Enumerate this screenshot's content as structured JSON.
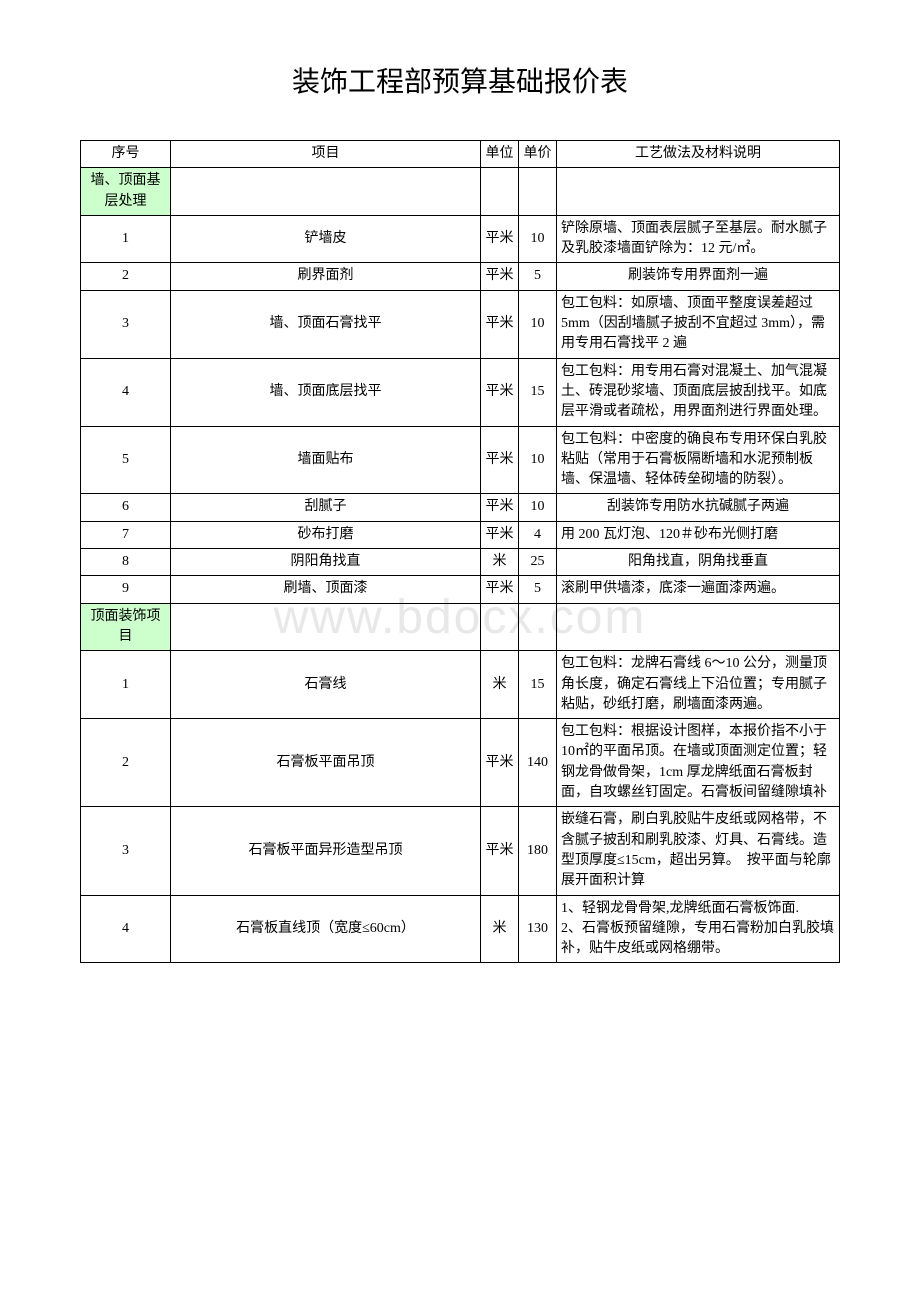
{
  "title": "装饰工程部预算基础报价表",
  "watermark": "www.bdocx.com",
  "headers": {
    "seq": "序号",
    "item": "项目",
    "unit": "单位",
    "price": "单价",
    "desc": "工艺做法及材料说明"
  },
  "section1": "墙、顶面基层处理",
  "section2": "顶面装饰项目",
  "s1": [
    {
      "n": "1",
      "item": "铲墙皮",
      "unit": "平米",
      "price": "10",
      "desc": "铲除原墙、顶面表层腻子至基层。耐水腻子及乳胶漆墙面铲除为：12 元/㎡。",
      "align": "left"
    },
    {
      "n": "2",
      "item": "刷界面剂",
      "unit": "平米",
      "price": "5",
      "desc": "刷装饰专用界面剂一遍",
      "align": "center"
    },
    {
      "n": "3",
      "item": "墙、顶面石膏找平",
      "unit": "平米",
      "price": "10",
      "desc": "包工包料：如原墙、顶面平整度误差超过 5mm（因刮墙腻子披刮不宜超过 3mm），需用专用石膏找平 2 遍",
      "align": "left"
    },
    {
      "n": "4",
      "item": "墙、顶面底层找平",
      "unit": "平米",
      "price": "15",
      "desc": "包工包料：用专用石膏对混凝土、加气混凝土、砖混砂浆墙、顶面底层披刮找平。如底层平滑或者疏松，用界面剂进行界面处理。",
      "align": "left"
    },
    {
      "n": "5",
      "item": "墙面贴布",
      "unit": "平米",
      "price": "10",
      "desc": "包工包料：中密度的确良布专用环保白乳胶粘贴（常用于石膏板隔断墙和水泥预制板墙、保温墙、轻体砖垒砌墙的防裂）。",
      "align": "left"
    },
    {
      "n": "6",
      "item": "刮腻子",
      "unit": "平米",
      "price": "10",
      "desc": "刮装饰专用防水抗碱腻子两遍",
      "align": "center"
    },
    {
      "n": "7",
      "item": "砂布打磨",
      "unit": "平米",
      "price": "4",
      "desc": "用 200 瓦灯泡、120＃砂布光侧打磨",
      "align": "left"
    },
    {
      "n": "8",
      "item": "阴阳角找直",
      "unit": "米",
      "price": "25",
      "desc": "阳角找直，阴角找垂直",
      "align": "center"
    },
    {
      "n": "9",
      "item": "刷墙、顶面漆",
      "unit": "平米",
      "price": "5",
      "desc": "滚刷甲供墙漆，底漆一遍面漆两遍。",
      "align": "left"
    }
  ],
  "s2": [
    {
      "n": "1",
      "item": "石膏线",
      "unit": "米",
      "price": "15",
      "desc": "包工包料：龙牌石膏线 6～10 公分，测量顶角长度，确定石膏线上下沿位置；专用腻子粘贴，砂纸打磨，刷墙面漆两遍。",
      "align": "left"
    },
    {
      "n": "2",
      "item": "石膏板平面吊顶",
      "unit": "平米",
      "price": "140",
      "desc": "包工包料：根据设计图样，本报价指不小于 10㎡的平面吊顶。在墙或顶面测定位置；轻钢龙骨做骨架，1cm 厚龙牌纸面石膏板封面，自攻螺丝钉固定。石膏板间留缝隙填补",
      "align": "left"
    },
    {
      "n": "3",
      "item": "石膏板平面异形造型吊顶",
      "unit": "平米",
      "price": "180",
      "desc": "嵌缝石膏，刷白乳胶贴牛皮纸或网格带，不含腻子披刮和刷乳胶漆、灯具、石膏线。造型顶厚度≤15cm，超出另算。　按平面与轮廓展开面积计算",
      "align": "left"
    },
    {
      "n": "4",
      "item": "石膏板直线顶（宽度≤60cm）",
      "unit": "米",
      "price": "130",
      "desc": "1、轻钢龙骨骨架,龙牌纸面石膏板饰面.\n2、石膏板预留缝隙，专用石膏粉加白乳胶填补，贴牛皮纸或网格绷带。",
      "align": "left"
    }
  ]
}
